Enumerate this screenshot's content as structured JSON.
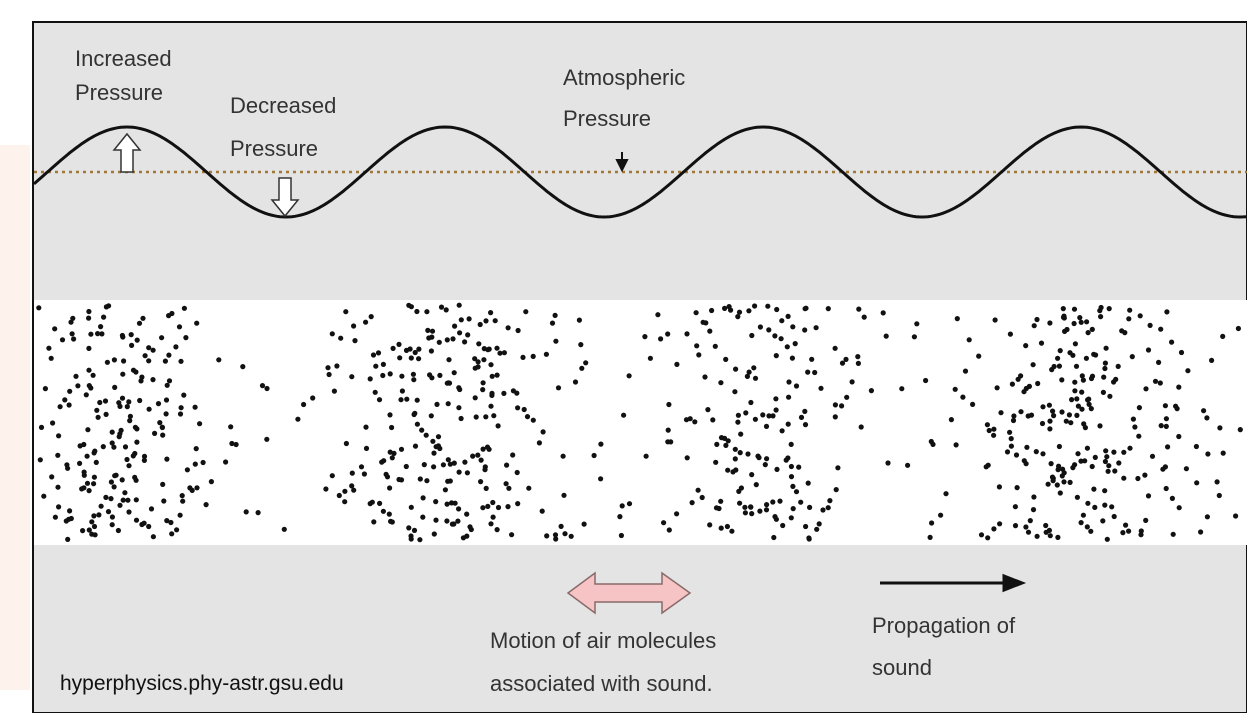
{
  "labels": {
    "increased": [
      "Increased",
      "Pressure"
    ],
    "decreased": [
      "Decreased",
      "Pressure"
    ],
    "atmospheric": [
      "Atmospheric",
      "Pressure"
    ],
    "motion": [
      "Motion of air molecules",
      "associated with sound."
    ],
    "propagation": [
      "Propagation of",
      "sound"
    ]
  },
  "source": "hyperphysics.phy-astr.gsu.edu"
}
